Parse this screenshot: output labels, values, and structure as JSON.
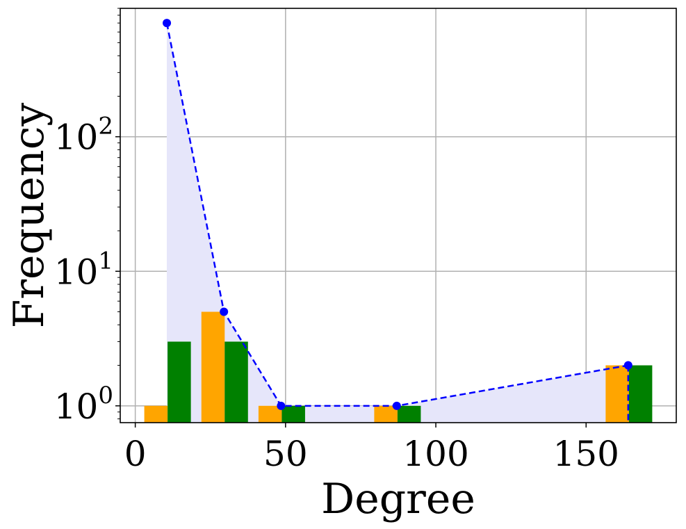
{
  "chart_data": {
    "type": "bar",
    "xlabel": "Degree",
    "ylabel": "Frequency",
    "xlim": [
      -5,
      180
    ],
    "ylim": [
      0.75,
      900
    ],
    "yscale": "log",
    "grid": true,
    "legend": "none",
    "x_ticks": [
      0,
      50,
      100,
      150
    ],
    "y_ticks": [
      {
        "value": 1,
        "base": "10",
        "exp": "0"
      },
      {
        "value": 10,
        "base": "10",
        "exp": "1"
      },
      {
        "value": 100,
        "base": "10",
        "exp": "2"
      }
    ],
    "bin_width": 7.75,
    "series": [
      {
        "color": "#ffa500",
        "bars": [
          {
            "x0": 3,
            "x1": 10.75,
            "y": 1
          },
          {
            "x0": 22,
            "x1": 29.75,
            "y": 5
          },
          {
            "x0": 41,
            "x1": 48.75,
            "y": 1
          },
          {
            "x0": 79.5,
            "x1": 87.25,
            "y": 1
          },
          {
            "x0": 156.5,
            "x1": 164.25,
            "y": 2
          }
        ]
      },
      {
        "color": "#008000",
        "bars": [
          {
            "x0": 10.75,
            "x1": 18.5,
            "y": 3
          },
          {
            "x0": 29.75,
            "x1": 37.5,
            "y": 3
          },
          {
            "x0": 48.75,
            "x1": 56.5,
            "y": 1
          },
          {
            "x0": 87.25,
            "x1": 95,
            "y": 1
          },
          {
            "x0": 164.25,
            "x1": 172,
            "y": 2
          }
        ]
      }
    ],
    "line": {
      "color": "#0000ff",
      "fill_color": "#e6e6fa",
      "style": "dashed",
      "points": [
        {
          "x": 10.5,
          "y": 700
        },
        {
          "x": 29.5,
          "y": 5
        },
        {
          "x": 48.5,
          "y": 1
        },
        {
          "x": 87,
          "y": 1
        },
        {
          "x": 164,
          "y": 2
        }
      ]
    }
  }
}
